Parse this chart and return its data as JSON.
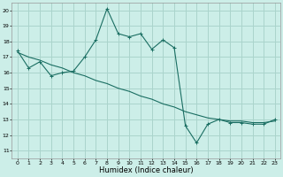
{
  "xlabel": "Humidex (Indice chaleur)",
  "background_color": "#cceee8",
  "grid_color": "#aad4cc",
  "line_color": "#1a6e62",
  "xlim": [
    -0.5,
    23.5
  ],
  "ylim": [
    10.5,
    20.5
  ],
  "yticks": [
    11,
    12,
    13,
    14,
    15,
    16,
    17,
    18,
    19,
    20
  ],
  "xticks": [
    0,
    1,
    2,
    3,
    4,
    5,
    6,
    7,
    8,
    9,
    10,
    11,
    12,
    13,
    14,
    15,
    16,
    17,
    18,
    19,
    20,
    21,
    22,
    23
  ],
  "series1_x": [
    0,
    1,
    2,
    3,
    4,
    5,
    6,
    7,
    8,
    9,
    10,
    11,
    12,
    13,
    14,
    15,
    16,
    17,
    18,
    19,
    20,
    21,
    22,
    23
  ],
  "series1_y": [
    17.4,
    16.3,
    16.7,
    15.8,
    16.0,
    16.1,
    17.0,
    18.1,
    20.1,
    18.5,
    18.3,
    18.5,
    17.5,
    18.1,
    17.6,
    12.6,
    11.5,
    12.7,
    13.0,
    12.8,
    12.8,
    12.7,
    12.7,
    13.0
  ],
  "series2_x_pts": [
    0,
    1,
    2,
    3,
    4,
    5,
    6,
    7,
    8,
    9,
    10,
    11,
    12,
    13,
    14,
    15,
    16,
    17,
    18,
    19,
    20,
    21,
    22,
    23
  ],
  "series2_y_pts": [
    17.3,
    17.0,
    16.8,
    16.5,
    16.3,
    16.0,
    15.8,
    15.5,
    15.3,
    15.0,
    14.8,
    14.5,
    14.3,
    14.0,
    13.8,
    13.5,
    13.3,
    13.1,
    13.0,
    12.9,
    12.9,
    12.8,
    12.8,
    12.9
  ],
  "xlabel_fontsize": 6,
  "tick_fontsize": 4.5
}
